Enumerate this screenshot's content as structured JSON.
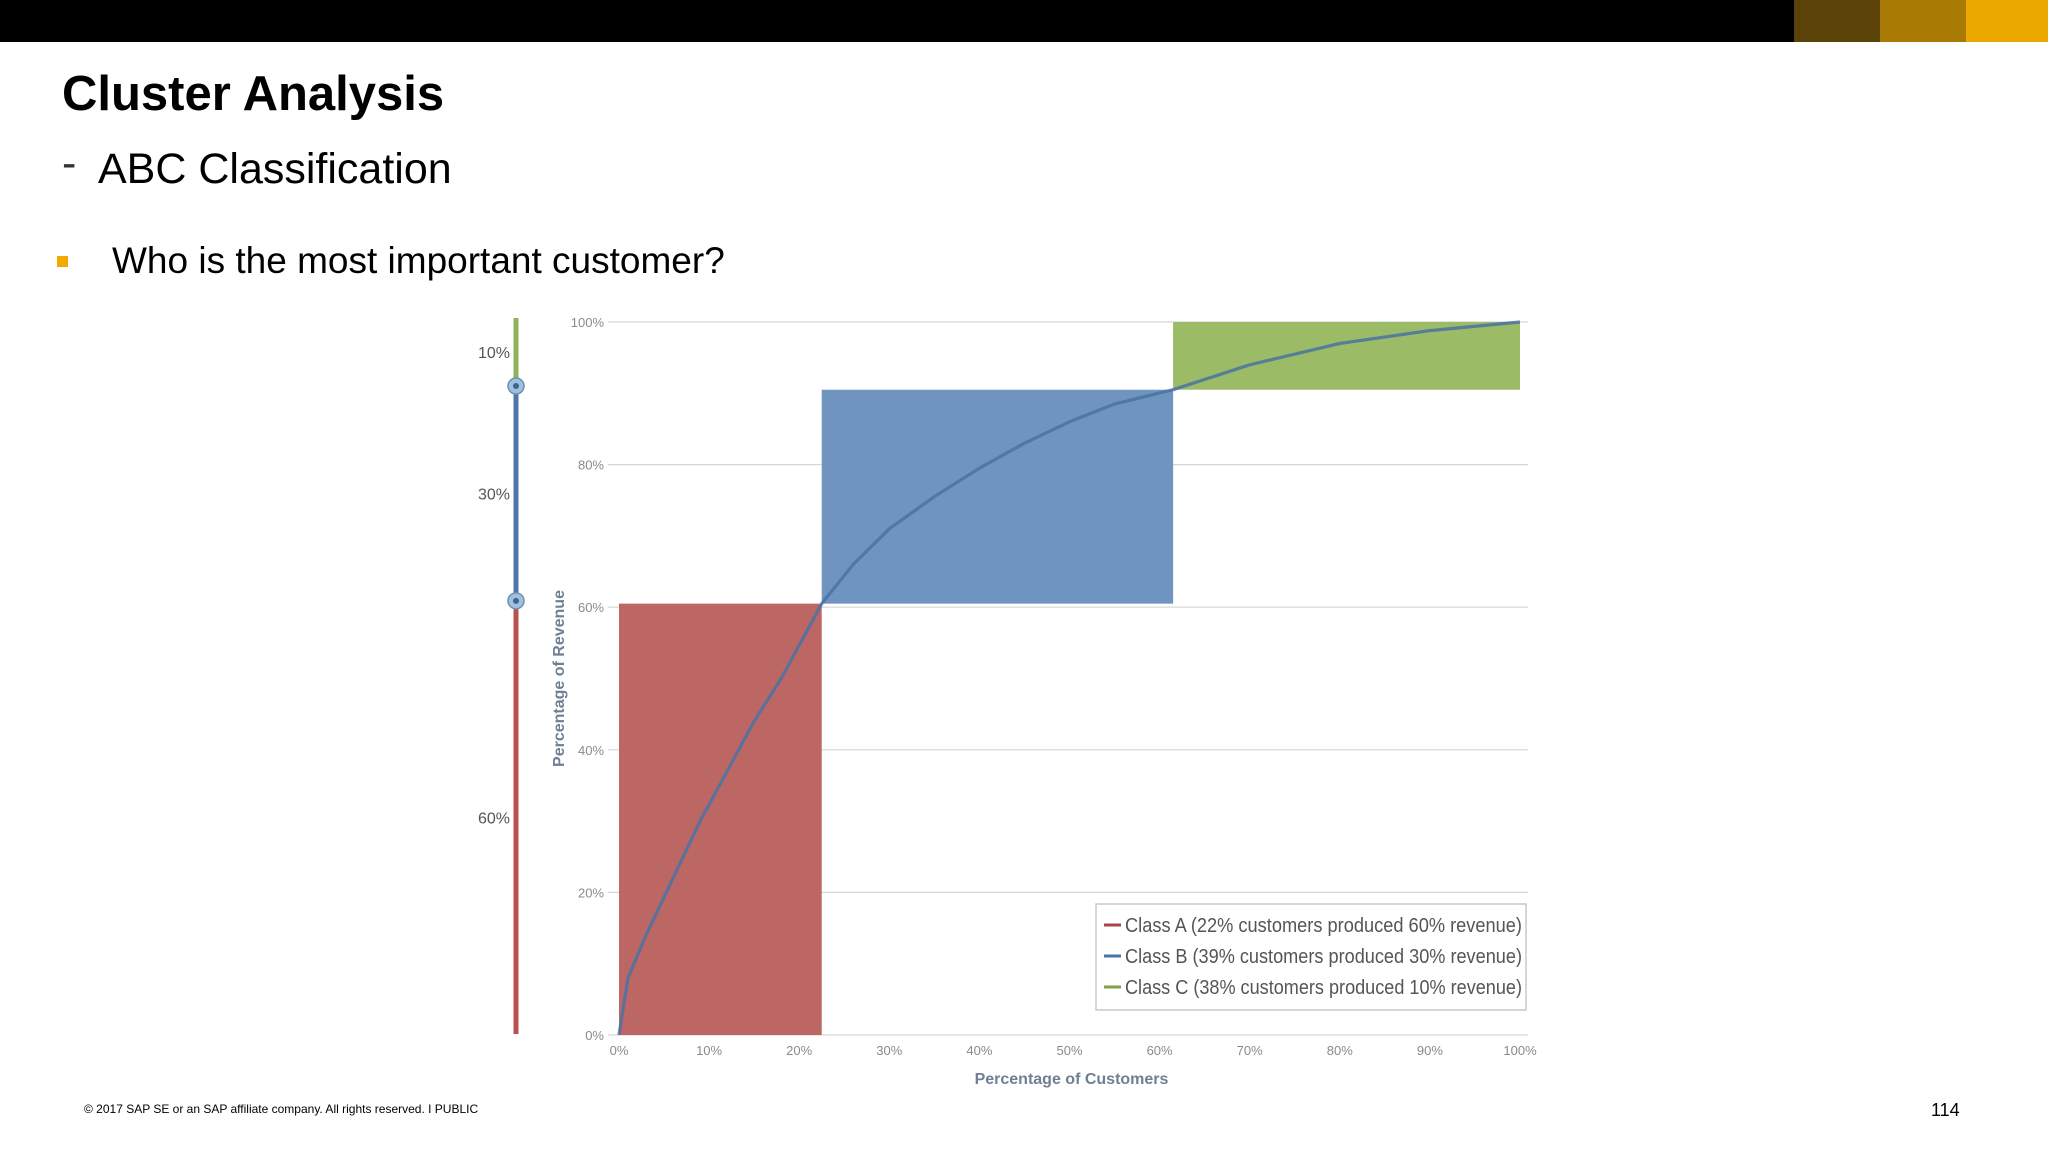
{
  "slide": {
    "title": "Cluster Analysis",
    "subtitle_dash": "-",
    "subtitle": "ABC Classification",
    "bullet": "Who is the most important customer?",
    "footer": "© 2017 SAP SE or an SAP affiliate company. All rights reserved.  I   PUBLIC",
    "page_number": "114"
  },
  "colors": {
    "top_bar": "#000000",
    "accent_swatches": [
      "#5b4209",
      "#a97b05",
      "#eba900"
    ],
    "bullet": "#f0ab00"
  },
  "chart_data": {
    "type": "area",
    "title": "",
    "xlabel": "Percentage of Customers",
    "ylabel": "Percentage of Revenue",
    "xlim": [
      0,
      100
    ],
    "ylim": [
      0,
      100
    ],
    "x_ticks": [
      "0%",
      "10%",
      "20%",
      "30%",
      "40%",
      "50%",
      "60%",
      "70%",
      "80%",
      "90%",
      "100%"
    ],
    "y_ticks": [
      "0%",
      "20%",
      "40%",
      "60%",
      "80%",
      "100%"
    ],
    "grid": true,
    "legend_position": "bottom-right",
    "classes": [
      {
        "name": "Class A (22% customers produced 60% revenue)",
        "x_start": 0,
        "x_end": 22.5,
        "y_start": 0,
        "y_end": 60.5,
        "color": "#bd6765",
        "line_color": "#a84542"
      },
      {
        "name": "Class B (39% customers produced 30% revenue)",
        "x_start": 22.5,
        "x_end": 61.5,
        "y_start": 60.5,
        "y_end": 90.5,
        "color": "#6f94c0",
        "line_color": "#4a72a3"
      },
      {
        "name": "Class C (38% customers produced 10% revenue)",
        "x_start": 61.5,
        "x_end": 100,
        "y_start": 90.5,
        "y_end": 100,
        "color": "#9cbb66",
        "line_color": "#82a04c"
      }
    ],
    "curve": {
      "x": [
        0,
        1,
        3,
        6,
        9,
        12,
        15,
        18,
        22.5,
        26,
        30,
        35,
        40,
        45,
        50,
        55,
        61.5,
        70,
        80,
        90,
        100
      ],
      "y": [
        0,
        8,
        14,
        22,
        30,
        37,
        44,
        50,
        60.5,
        66,
        71,
        75.5,
        79.5,
        83,
        86,
        88.5,
        90.5,
        94,
        97,
        98.8,
        100
      ],
      "color": "#4a72a3"
    },
    "side_bar": {
      "segments": [
        {
          "label": "10%",
          "from": 90.5,
          "to": 100,
          "color": "#8fb35a"
        },
        {
          "label": "30%",
          "from": 60.5,
          "to": 90.5,
          "color": "#4f76a8"
        },
        {
          "label": "60%",
          "from": 0,
          "to": 60.5,
          "color": "#b9514f"
        }
      ],
      "handles": [
        90.5,
        60.5
      ],
      "handle_color": "#9fc1e0"
    }
  }
}
